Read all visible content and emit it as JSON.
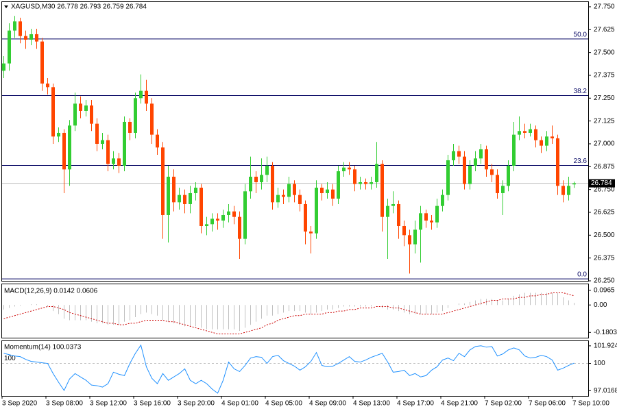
{
  "chart_data": [
    {
      "type": "candlestick",
      "title": "XAGUSD,M30 26.778 26.793 26.759 26.784",
      "up_color": "#32cd32",
      "down_color": "#ff4500",
      "categories": [
        "3 Sep 2020",
        null,
        null,
        null,
        null,
        null,
        null,
        null,
        "3 Sep 08:00",
        null,
        null,
        null,
        null,
        null,
        null,
        null,
        "3 Sep 12:00",
        null,
        null,
        null,
        null,
        null,
        null,
        null,
        "3 Sep 16:00",
        null,
        null,
        null,
        null,
        null,
        null,
        null,
        "3 Sep 20:00",
        null,
        null,
        null,
        null,
        null,
        null,
        null,
        "4 Sep 01:00",
        null,
        null,
        null,
        null,
        null,
        null,
        null,
        "4 Sep 05:00",
        null,
        null,
        null,
        null,
        null,
        null,
        null,
        "4 Sep 09:00",
        null,
        null,
        null,
        null,
        null,
        null,
        null,
        "4 Sep 13:00",
        null,
        null,
        null,
        null,
        null,
        null,
        null,
        "4 Sep 17:00",
        null,
        null,
        null,
        null,
        null,
        null,
        null,
        "4 Sep 21:00",
        null,
        null,
        null,
        null,
        null,
        null,
        null,
        "7 Sep 02:00",
        null,
        null,
        null,
        null,
        null,
        null,
        null,
        "7 Sep 06:00",
        null,
        null,
        null,
        null,
        null,
        null,
        null,
        "7 Sep 10:00"
      ],
      "ohlc": [
        [
          27.4,
          27.48,
          27.36,
          27.44
        ],
        [
          27.44,
          27.66,
          27.4,
          27.62
        ],
        [
          27.62,
          27.7,
          27.58,
          27.67
        ],
        [
          27.67,
          27.69,
          27.55,
          27.59
        ],
        [
          27.59,
          27.62,
          27.52,
          27.57
        ],
        [
          27.57,
          27.63,
          27.54,
          27.6
        ],
        [
          27.6,
          27.63,
          27.52,
          27.56
        ],
        [
          27.56,
          27.58,
          27.29,
          27.33
        ],
        [
          27.33,
          27.36,
          27.27,
          27.31
        ],
        [
          27.31,
          27.33,
          27.0,
          27.04
        ],
        [
          27.04,
          27.09,
          27.01,
          27.06
        ],
        [
          27.06,
          27.08,
          26.73,
          26.86
        ],
        [
          26.86,
          27.13,
          26.77,
          27.1
        ],
        [
          27.1,
          27.28,
          27.07,
          27.22
        ],
        [
          27.22,
          27.26,
          27.14,
          27.18
        ],
        [
          27.18,
          27.24,
          27.15,
          27.21
        ],
        [
          27.21,
          27.24,
          27.07,
          27.11
        ],
        [
          27.11,
          27.14,
          26.96,
          27.0
        ],
        [
          27.0,
          27.06,
          26.97,
          27.02
        ],
        [
          27.02,
          27.05,
          26.85,
          26.89
        ],
        [
          26.89,
          26.96,
          26.86,
          26.92
        ],
        [
          26.92,
          26.95,
          26.84,
          26.88
        ],
        [
          26.88,
          27.15,
          26.85,
          27.12
        ],
        [
          27.12,
          27.14,
          27.02,
          27.06
        ],
        [
          27.06,
          27.28,
          27.03,
          27.25
        ],
        [
          27.25,
          27.38,
          27.22,
          27.29
        ],
        [
          27.29,
          27.35,
          27.18,
          27.22
        ],
        [
          27.22,
          27.25,
          27.0,
          27.05
        ],
        [
          27.05,
          27.08,
          26.94,
          26.98
        ],
        [
          26.98,
          27.01,
          26.48,
          26.61
        ],
        [
          26.61,
          26.88,
          26.46,
          26.82
        ],
        [
          26.82,
          26.86,
          26.63,
          26.68
        ],
        [
          26.68,
          26.76,
          26.64,
          26.72
        ],
        [
          26.72,
          26.75,
          26.62,
          26.67
        ],
        [
          26.67,
          26.77,
          26.62,
          26.73
        ],
        [
          26.73,
          26.79,
          26.69,
          26.76
        ],
        [
          26.76,
          26.78,
          26.51,
          26.55
        ],
        [
          26.55,
          26.6,
          26.5,
          26.56
        ],
        [
          26.56,
          26.62,
          26.52,
          26.59
        ],
        [
          26.59,
          26.62,
          26.53,
          26.58
        ],
        [
          26.58,
          26.64,
          26.54,
          26.61
        ],
        [
          26.61,
          26.67,
          26.57,
          26.63
        ],
        [
          26.63,
          26.66,
          26.56,
          26.6
        ],
        [
          26.6,
          26.63,
          26.37,
          26.48
        ],
        [
          26.48,
          26.78,
          26.45,
          26.74
        ],
        [
          26.74,
          26.93,
          26.7,
          26.82
        ],
        [
          26.82,
          26.85,
          26.73,
          26.79
        ],
        [
          26.79,
          26.92,
          26.75,
          26.83
        ],
        [
          26.83,
          26.93,
          26.79,
          26.88
        ],
        [
          26.88,
          26.9,
          26.64,
          26.68
        ],
        [
          26.68,
          26.76,
          26.65,
          26.72
        ],
        [
          26.72,
          26.75,
          26.67,
          26.71
        ],
        [
          26.71,
          26.82,
          26.68,
          26.78
        ],
        [
          26.78,
          26.8,
          26.68,
          26.72
        ],
        [
          26.72,
          26.75,
          26.63,
          26.67
        ],
        [
          26.67,
          26.69,
          26.45,
          26.52
        ],
        [
          26.52,
          26.55,
          26.4,
          26.51
        ],
        [
          26.51,
          26.8,
          26.48,
          26.76
        ],
        [
          26.76,
          26.78,
          26.69,
          26.73
        ],
        [
          26.73,
          26.79,
          26.7,
          26.75
        ],
        [
          26.75,
          26.78,
          26.66,
          26.7
        ],
        [
          26.7,
          26.88,
          26.67,
          26.85
        ],
        [
          26.85,
          26.9,
          26.82,
          26.87
        ],
        [
          26.87,
          26.9,
          26.83,
          26.86
        ],
        [
          26.86,
          26.88,
          26.74,
          26.78
        ],
        [
          26.78,
          26.82,
          26.75,
          26.79
        ],
        [
          26.79,
          26.81,
          26.75,
          26.78
        ],
        [
          26.78,
          26.82,
          26.75,
          26.79
        ],
        [
          26.79,
          27.01,
          26.76,
          26.89
        ],
        [
          26.89,
          26.91,
          26.52,
          26.6
        ],
        [
          26.6,
          26.7,
          26.37,
          26.66
        ],
        [
          26.66,
          26.74,
          26.62,
          26.67
        ],
        [
          26.67,
          26.69,
          26.48,
          26.55
        ],
        [
          26.55,
          26.58,
          26.44,
          26.5
        ],
        [
          26.5,
          26.53,
          26.29,
          26.45
        ],
        [
          26.45,
          26.58,
          26.4,
          26.53
        ],
        [
          26.53,
          26.66,
          26.35,
          26.62
        ],
        [
          26.62,
          26.64,
          26.54,
          26.58
        ],
        [
          26.58,
          26.61,
          26.53,
          26.57
        ],
        [
          26.57,
          26.7,
          26.54,
          26.66
        ],
        [
          26.66,
          26.75,
          26.63,
          26.72
        ],
        [
          26.72,
          26.94,
          26.69,
          26.91
        ],
        [
          26.91,
          27.0,
          26.88,
          26.96
        ],
        [
          26.96,
          26.99,
          26.89,
          26.93
        ],
        [
          26.93,
          26.96,
          26.75,
          26.78
        ],
        [
          26.78,
          26.91,
          26.75,
          26.88
        ],
        [
          26.88,
          26.96,
          26.85,
          26.92
        ],
        [
          26.92,
          27.0,
          26.89,
          26.97
        ],
        [
          26.97,
          26.99,
          26.82,
          26.86
        ],
        [
          26.86,
          26.89,
          26.79,
          26.83
        ],
        [
          26.83,
          26.86,
          26.7,
          26.73
        ],
        [
          26.73,
          26.8,
          26.61,
          26.77
        ],
        [
          26.77,
          26.91,
          26.74,
          26.88
        ],
        [
          26.88,
          27.12,
          26.85,
          27.05
        ],
        [
          27.05,
          27.15,
          27.02,
          27.07
        ],
        [
          27.07,
          27.11,
          27.03,
          27.06
        ],
        [
          27.06,
          27.11,
          27.04,
          27.08
        ],
        [
          27.08,
          27.1,
          26.98,
          27.02
        ],
        [
          27.02,
          27.04,
          26.95,
          26.99
        ],
        [
          26.99,
          27.07,
          26.96,
          27.04
        ],
        [
          27.04,
          27.1,
          27.0,
          27.03
        ],
        [
          27.03,
          27.05,
          26.72,
          26.77
        ],
        [
          26.77,
          26.8,
          26.68,
          26.72
        ],
        [
          26.72,
          26.82,
          26.69,
          26.77
        ],
        [
          26.778,
          26.793,
          26.759,
          26.784
        ]
      ],
      "ylim": [
        26.25,
        27.776
      ],
      "yticks": [
        {
          "value": 27.75,
          "label": "27.750"
        },
        27.625,
        {
          "value": 27.5,
          "label": "27.500"
        },
        27.375,
        {
          "value": 27.25,
          "label": "27.250"
        },
        27.125,
        {
          "value": 27,
          "label": "27.000"
        },
        26.875,
        {
          "value": 26.75,
          "label": "26.750"
        },
        26.625,
        {
          "value": 26.5,
          "label": "26.500"
        },
        26.375,
        {
          "value": 26.25,
          "label": "26.250"
        }
      ],
      "fibo": [
        {
          "label": "50.0",
          "price": 27.574
        },
        {
          "label": "38.2",
          "price": 27.264
        },
        {
          "label": "23.6",
          "price": 26.882
        },
        {
          "label": "0.0",
          "price": 26.261
        }
      ],
      "fibo_color": "#000060",
      "bid": 26.784
    },
    {
      "type": "macd",
      "title": "MACD(12,26,9) 0.0142 0.0606",
      "color": "#c0c0c0",
      "signal_color": "#cc0000",
      "values": [
        -0.03,
        -0.02,
        -0.01,
        -0.005,
        0.0,
        0.005,
        0.005,
        0.0,
        -0.01,
        -0.04,
        -0.06,
        -0.09,
        -0.1,
        -0.1,
        -0.1,
        -0.1,
        -0.11,
        -0.12,
        -0.12,
        -0.13,
        -0.13,
        -0.13,
        -0.11,
        -0.1,
        -0.08,
        -0.06,
        -0.05,
        -0.06,
        -0.07,
        -0.1,
        -0.11,
        -0.12,
        -0.13,
        -0.14,
        -0.14,
        -0.14,
        -0.15,
        -0.16,
        -0.16,
        -0.16,
        -0.16,
        -0.16,
        -0.16,
        -0.17,
        -0.15,
        -0.13,
        -0.11,
        -0.09,
        -0.07,
        -0.07,
        -0.06,
        -0.05,
        -0.04,
        -0.04,
        -0.04,
        -0.05,
        -0.06,
        -0.05,
        -0.04,
        -0.03,
        -0.03,
        -0.02,
        -0.01,
        -0.01,
        -0.01,
        -0.01,
        -0.01,
        -0.01,
        0.0,
        -0.02,
        -0.03,
        -0.03,
        -0.04,
        -0.05,
        -0.06,
        -0.06,
        -0.06,
        -0.06,
        -0.06,
        -0.05,
        -0.04,
        -0.02,
        0.0,
        0.01,
        0.01,
        0.02,
        0.03,
        0.04,
        0.04,
        0.04,
        0.03,
        0.03,
        0.04,
        0.06,
        0.07,
        0.08,
        0.08,
        0.08,
        0.08,
        0.08,
        0.08,
        0.08,
        0.05,
        0.03,
        0.0142
      ],
      "signal": [
        -0.09,
        -0.08,
        -0.07,
        -0.06,
        -0.05,
        -0.04,
        -0.03,
        -0.02,
        -0.01,
        -0.01,
        -0.02,
        -0.03,
        -0.05,
        -0.06,
        -0.07,
        -0.08,
        -0.09,
        -0.1,
        -0.11,
        -0.12,
        -0.12,
        -0.13,
        -0.13,
        -0.12,
        -0.12,
        -0.11,
        -0.1,
        -0.1,
        -0.1,
        -0.1,
        -0.11,
        -0.11,
        -0.12,
        -0.13,
        -0.14,
        -0.15,
        -0.16,
        -0.17,
        -0.18,
        -0.19,
        -0.19,
        -0.19,
        -0.19,
        -0.19,
        -0.18,
        -0.17,
        -0.16,
        -0.15,
        -0.13,
        -0.12,
        -0.1,
        -0.09,
        -0.08,
        -0.07,
        -0.07,
        -0.06,
        -0.06,
        -0.06,
        -0.06,
        -0.05,
        -0.05,
        -0.04,
        -0.04,
        -0.03,
        -0.03,
        -0.02,
        -0.02,
        -0.02,
        -0.01,
        -0.01,
        -0.01,
        -0.02,
        -0.02,
        -0.03,
        -0.04,
        -0.05,
        -0.06,
        -0.06,
        -0.06,
        -0.06,
        -0.06,
        -0.05,
        -0.04,
        -0.03,
        -0.02,
        -0.01,
        0.0,
        0.01,
        0.02,
        0.03,
        0.03,
        0.04,
        0.04,
        0.04,
        0.05,
        0.05,
        0.06,
        0.06,
        0.07,
        0.07,
        0.08,
        0.08,
        0.08,
        0.07,
        0.0606
      ],
      "ylim": [
        -0.215,
        0.136
      ],
      "yticks": [
        0.0965,
        {
          "value": 0,
          "label": "0.00"
        },
        -0.1803
      ]
    },
    {
      "type": "line",
      "title": "Momentum(14) 100.0373",
      "color": "#1e90ff",
      "values": [
        101.11,
        100.96,
        100.81,
        100.74,
        100.44,
        100.22,
        100.15,
        100.07,
        100.0,
        98.89,
        97.93,
        97.04,
        98.3,
        98.89,
        98.52,
        98.15,
        97.63,
        97.56,
        97.41,
        97.78,
        99.04,
        98.81,
        98.67,
        100.0,
        101.11,
        102.0,
        99.63,
        98.37,
        97.78,
        98.89,
        98.15,
        98.52,
        98.89,
        99.41,
        98.15,
        97.78,
        98.15,
        97.78,
        97.19,
        96.74,
        98.15,
        100.15,
        99.41,
        99.11,
        99.78,
        100.59,
        100.74,
        100.67,
        100.0,
        100.74,
        100.89,
        100.3,
        100.0,
        99.7,
        99.26,
        99.63,
        100.22,
        101.19,
        99.78,
        99.63,
        99.7,
        100.0,
        100.37,
        100.74,
        100.22,
        100.15,
        100.37,
        100.67,
        100.89,
        101.11,
        100.15,
        99.04,
        99.11,
        99.26,
        98.67,
        98.89,
        98.52,
        98.67,
        99.26,
        99.63,
        100.37,
        100.59,
        100.3,
        101.11,
        100.74,
        101.48,
        101.85,
        101.93,
        101.78,
        101.85,
        100.81,
        101.04,
        101.48,
        101.7,
        101.48,
        100.81,
        100.59,
        100.67,
        100.89,
        100.74,
        100.37,
        99.26,
        99.48,
        99.78,
        100.0373
      ],
      "ylim": [
        96.44,
        102.44
      ],
      "yticks": [
        101.9244,
        100,
        97.0168
      ],
      "levels": [
        100
      ]
    }
  ]
}
